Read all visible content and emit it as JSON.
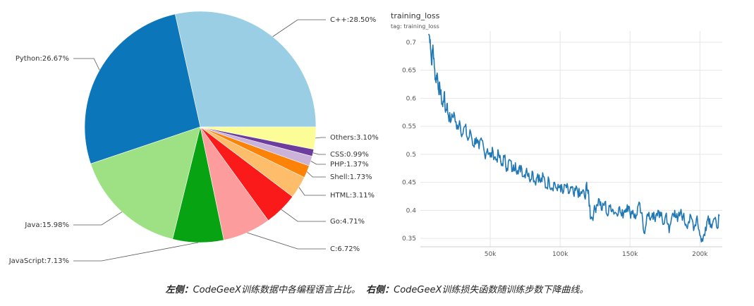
{
  "chart_data": [
    {
      "type": "pie",
      "slices": [
        {
          "label": "C++:28.50%",
          "value": 28.5,
          "color": "#99cee4"
        },
        {
          "label": "Python:26.67%",
          "value": 26.67,
          "color": "#0b76b9"
        },
        {
          "label": "Java:15.98%",
          "value": 15.98,
          "color": "#9ee185"
        },
        {
          "label": "JavaScript:7.13%",
          "value": 7.13,
          "color": "#08a313"
        },
        {
          "label": "C:6.72%",
          "value": 6.72,
          "color": "#fd9c9c"
        },
        {
          "label": "Go:4.71%",
          "value": 4.71,
          "color": "#fb1a1a"
        },
        {
          "label": "HTML:3.11%",
          "value": 3.11,
          "color": "#fdbd6b"
        },
        {
          "label": "Shell:1.73%",
          "value": 1.73,
          "color": "#fd8208"
        },
        {
          "label": "PHP:1.37%",
          "value": 1.37,
          "color": "#cab2d8"
        },
        {
          "label": "CSS:0.99%",
          "value": 0.99,
          "color": "#6c3d9c"
        },
        {
          "label": "Others:3.10%",
          "value": 3.1,
          "color": "#fdfd98"
        }
      ]
    },
    {
      "type": "line",
      "title": "training_loss",
      "subtitle": "tag: training_loss",
      "xlim": [
        0,
        216000
      ],
      "ylim": [
        0.335,
        0.72
      ],
      "x_ticks": [
        {
          "value": 50000,
          "label": "50k"
        },
        {
          "value": 100000,
          "label": "100k"
        },
        {
          "value": 150000,
          "label": "150k"
        },
        {
          "value": 200000,
          "label": "200k"
        }
      ],
      "y_ticks": [
        {
          "value": 0.7,
          "label": "0.7"
        },
        {
          "value": 0.65,
          "label": "0.65"
        },
        {
          "value": 0.6,
          "label": "0.6"
        },
        {
          "value": 0.55,
          "label": "0.55"
        },
        {
          "value": 0.5,
          "label": "0.5"
        },
        {
          "value": 0.45,
          "label": "0.45"
        },
        {
          "value": 0.4,
          "label": "0.4"
        },
        {
          "value": 0.35,
          "label": "0.35"
        }
      ],
      "grid": true,
      "line_color": "#1f77b4",
      "series": [
        {
          "x": [
            6000,
            7000,
            8000,
            9000,
            10000,
            11000,
            12000,
            13000,
            14000,
            15000,
            16000,
            17000,
            18000,
            19000,
            20000,
            22000,
            24000,
            26000,
            28000,
            30000,
            32000,
            34000,
            36000,
            38000,
            40000,
            42000,
            44000,
            46000,
            48000,
            50000,
            52000,
            54000,
            56000,
            58000,
            60000,
            62000,
            64000,
            66000,
            68000,
            70000,
            72000,
            74000,
            76000,
            78000,
            80000,
            82000,
            84000,
            86000,
            88000,
            90000,
            92000,
            94000,
            96000,
            98000,
            100000,
            102000,
            104000,
            106000,
            108000,
            110000,
            112000,
            114000,
            116000,
            118000,
            119000,
            120000,
            121000,
            122000,
            124000,
            126000,
            128000,
            130000,
            132000,
            134000,
            136000,
            138000,
            140000,
            142000,
            144000,
            146000,
            148000,
            150000,
            152000,
            154000,
            156000,
            158000,
            160000,
            162000,
            164000,
            166000,
            168000,
            170000,
            172000,
            174000,
            176000,
            178000,
            180000,
            182000,
            184000,
            186000,
            188000,
            190000,
            192000,
            194000,
            196000,
            198000,
            200000,
            202000,
            204000,
            206000,
            208000,
            210000,
            212000,
            214000
          ],
          "y": [
            0.715,
            0.705,
            0.66,
            0.695,
            0.655,
            0.63,
            0.645,
            0.615,
            0.62,
            0.6,
            0.585,
            0.61,
            0.575,
            0.59,
            0.57,
            0.56,
            0.575,
            0.545,
            0.56,
            0.535,
            0.55,
            0.525,
            0.54,
            0.515,
            0.53,
            0.51,
            0.525,
            0.5,
            0.51,
            0.495,
            0.505,
            0.49,
            0.5,
            0.48,
            0.495,
            0.475,
            0.49,
            0.47,
            0.485,
            0.465,
            0.48,
            0.46,
            0.475,
            0.455,
            0.47,
            0.45,
            0.465,
            0.45,
            0.46,
            0.44,
            0.455,
            0.44,
            0.45,
            0.435,
            0.445,
            0.43,
            0.445,
            0.43,
            0.44,
            0.425,
            0.44,
            0.425,
            0.435,
            0.42,
            0.45,
            0.43,
            0.41,
            0.385,
            0.395,
            0.41,
            0.42,
            0.4,
            0.415,
            0.39,
            0.41,
            0.4,
            0.395,
            0.405,
            0.39,
            0.4,
            0.41,
            0.395,
            0.4,
            0.385,
            0.41,
            0.395,
            0.36,
            0.39,
            0.385,
            0.395,
            0.38,
            0.4,
            0.39,
            0.375,
            0.395,
            0.36,
            0.39,
            0.4,
            0.38,
            0.395,
            0.39,
            0.375,
            0.38,
            0.385,
            0.37,
            0.39,
            0.355,
            0.345,
            0.37,
            0.39,
            0.375,
            0.385,
            0.37,
            0.39
          ]
        }
      ]
    }
  ],
  "caption": {
    "left_bold": "左侧：",
    "left_text": "CodeGeeX训练数据中各编程语言占比。",
    "right_bold": "右侧：",
    "right_text": "CodeGeeX训练损失函数随训练步数下降曲线。"
  }
}
